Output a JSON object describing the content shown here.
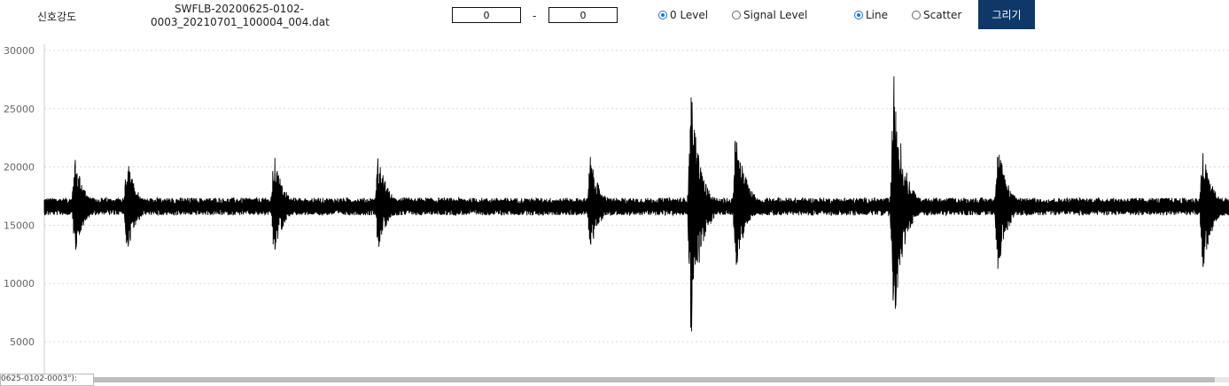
{
  "toolbar": {
    "signal_label": "신호강도",
    "filename_line1": "SWFLB-20200625-0102-",
    "filename_line2": "0003_20210701_100004_004.dat",
    "range_from": "0",
    "range_dash": "-",
    "range_to": "0",
    "level_options": [
      {
        "label": "0 Level",
        "selected": true
      },
      {
        "label": "Signal Level",
        "selected": false
      }
    ],
    "plot_options": [
      {
        "label": "Line",
        "selected": true
      },
      {
        "label": "Scatter",
        "selected": false
      }
    ],
    "draw_button": "그리기"
  },
  "tooltip_text": "0625-0102-0003\"):",
  "colors": {
    "accent": "#0f3868",
    "trace": "#000000",
    "grid": "#d9d9d9",
    "radio": "#1a73e8"
  },
  "chart_data": {
    "type": "line",
    "ylim": [
      3000,
      30000
    ],
    "yticks": [
      30000,
      25000,
      20000,
      15000,
      10000,
      5000
    ],
    "xlim": [
      0,
      100
    ],
    "baseline": 16600,
    "noise": 500,
    "grid": true,
    "bursts": [
      {
        "x": 2.6,
        "max": 20900,
        "min": 12600
      },
      {
        "x": 7.0,
        "max": 20800,
        "min": 12400
      },
      {
        "x": 19.4,
        "max": 21200,
        "min": 12200
      },
      {
        "x": 28.2,
        "max": 21000,
        "min": 12800
      },
      {
        "x": 46.1,
        "max": 21000,
        "min": 12700
      },
      {
        "x": 54.6,
        "max": 26500,
        "min": 4900
      },
      {
        "x": 58.4,
        "max": 24000,
        "min": 10900
      },
      {
        "x": 71.7,
        "max": 28200,
        "min": 5800
      },
      {
        "x": 80.5,
        "max": 22400,
        "min": 11000
      },
      {
        "x": 97.8,
        "max": 21600,
        "min": 10800
      }
    ]
  }
}
